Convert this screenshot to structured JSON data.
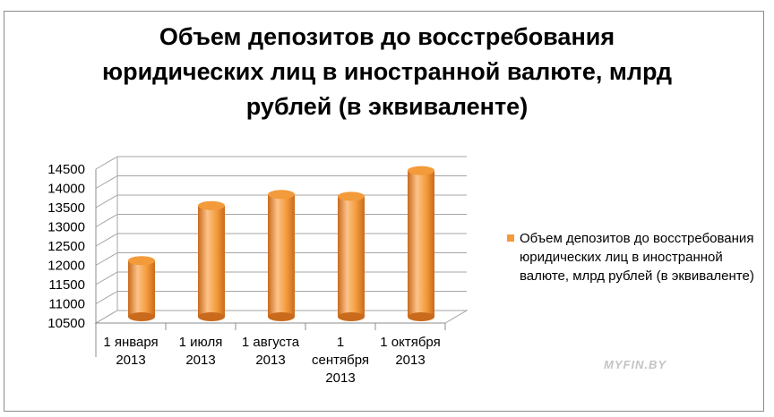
{
  "title_lines": [
    "Объем  депозитов до восстребования",
    "юридических лиц в иностранной валюте, млрд",
    "рублей (в эквиваленте)"
  ],
  "watermark": "MYFIN.BY",
  "chart_data": {
    "type": "bar",
    "title": "Объем  депозитов до восстребования юридических лиц в иностранной валюте, млрд рублей (в эквиваленте)",
    "categories": [
      [
        "1 января",
        "2013"
      ],
      [
        "1 июля",
        "2013"
      ],
      [
        "1 августа",
        "2013"
      ],
      [
        "1",
        "сентября",
        "2013"
      ],
      [
        "1 октября",
        "2013"
      ]
    ],
    "series": [
      {
        "name": "Объем  депозитов до восстребования юридических лиц в иностранной валюте, млрд рублей (в эквиваленте)",
        "values": [
          11960,
          13390,
          13680,
          13630,
          14300
        ]
      }
    ],
    "ylim": [
      10500,
      14500
    ],
    "yticks": [
      10500,
      11000,
      11500,
      12000,
      12500,
      13000,
      13500,
      14000,
      14500
    ],
    "grid": true,
    "legend": "right",
    "three_d": true,
    "colors": {
      "bar": "#f39a3a",
      "bar_dark": "#c96a1c",
      "bar_light": "#fcc38a",
      "grid": "#a6a6a6"
    }
  }
}
